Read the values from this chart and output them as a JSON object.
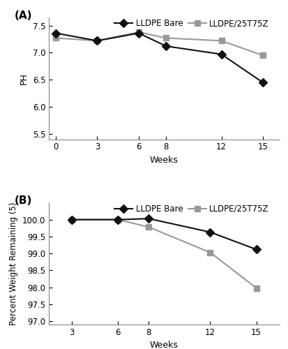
{
  "panel_A": {
    "title_label": "(A)",
    "weeks": [
      0,
      3,
      6,
      8,
      12,
      15
    ],
    "lldpe_bare_pH": [
      7.36,
      7.22,
      7.36,
      7.12,
      6.97,
      6.45
    ],
    "lldpe_tio2_pH": [
      7.27,
      7.22,
      7.38,
      7.27,
      7.22,
      6.95
    ],
    "xlabel": "Weeks",
    "ylabel": "PH",
    "ylim": [
      5.4,
      7.65
    ],
    "yticks": [
      5.5,
      6.0,
      6.5,
      7.0,
      7.5
    ],
    "xticks": [
      0,
      3,
      6,
      8,
      12,
      15
    ],
    "xlim": [
      -0.5,
      16.2
    ]
  },
  "panel_B": {
    "title_label": "(B)",
    "weeks": [
      3,
      6,
      8,
      12,
      15
    ],
    "lldpe_bare_wt": [
      100.0,
      100.0,
      100.03,
      99.63,
      99.12
    ],
    "lldpe_tio2_wt": [
      100.0,
      100.0,
      99.78,
      99.03,
      97.98
    ],
    "xlabel": "Weeks",
    "ylabel": "Percent Weight Remaining (5)",
    "ylim": [
      96.9,
      100.5
    ],
    "yticks": [
      97.0,
      97.5,
      98.0,
      98.5,
      99.0,
      99.5,
      100.0
    ],
    "xticks": [
      3,
      6,
      8,
      12,
      15
    ],
    "xlim": [
      1.5,
      16.5
    ]
  },
  "legend": {
    "lldpe_bare_label": "LLDPE Bare",
    "lldpe_tio2_label": "LLDPE/25T75Z"
  },
  "bare_color": "#111111",
  "tio2_color": "#999999",
  "line_width": 1.5,
  "marker_bare": "D",
  "marker_tio2": "s",
  "marker_size": 6,
  "font_size": 8.5,
  "label_font_size": 9,
  "bg_color": "#ffffff"
}
